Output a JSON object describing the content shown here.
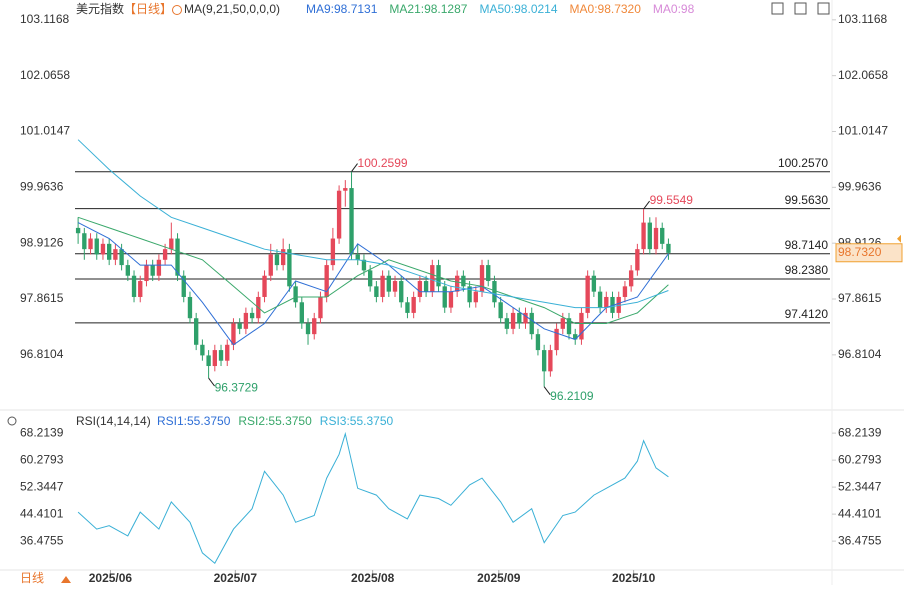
{
  "chart_data": {
    "type": "candlestick",
    "title": "美元指数",
    "period": "【日线】",
    "indicator": "MA(9,21,50,0,0,0)",
    "xlim": [
      -0.5,
      121
    ],
    "ylim": [
      95.81,
      103.49
    ],
    "yticks": [
      103.1168,
      102.0658,
      101.0147,
      99.9636,
      98.9126,
      97.8615,
      96.8104
    ],
    "xticks": [
      {
        "value": 5.2,
        "label": "2025/06"
      },
      {
        "value": 25.3,
        "label": "2025/07"
      },
      {
        "value": 47.4,
        "label": "2025/08"
      },
      {
        "value": 67.7,
        "label": "2025/09"
      },
      {
        "value": 89.4,
        "label": "2025/10"
      }
    ],
    "up_color": "#e5485a",
    "down_color": "#2ea06a",
    "candles": {
      "open": [
        99.2,
        99.1,
        98.8,
        99.0,
        98.7,
        98.9,
        98.6,
        98.8,
        98.5,
        98.3,
        97.9,
        98.2,
        98.5,
        98.3,
        98.6,
        98.8,
        99.0,
        98.3,
        97.9,
        97.5,
        97.0,
        96.8,
        96.6,
        96.9,
        96.7,
        97.0,
        97.4,
        97.3,
        97.6,
        97.5,
        97.9,
        98.3,
        98.7,
        98.5,
        98.8,
        98.1,
        97.8,
        97.4,
        97.2,
        97.5,
        97.9,
        98.5,
        99.0,
        99.9,
        99.95,
        98.7,
        98.6,
        98.4,
        98.1,
        97.9,
        98.3,
        98.0,
        98.2,
        97.8,
        97.6,
        97.9,
        98.2,
        98.0,
        98.5,
        98.1,
        97.7,
        98.0,
        98.3,
        98.1,
        97.8,
        98.0,
        98.5,
        98.2,
        97.8,
        97.5,
        97.3,
        97.6,
        97.4,
        97.6,
        97.2,
        96.9,
        96.5,
        96.9,
        97.3,
        97.5,
        97.2,
        97.1,
        97.6,
        98.3,
        98.0,
        97.7,
        97.9,
        97.6,
        97.9,
        98.1,
        98.4,
        98.8,
        99.3,
        98.8,
        99.2,
        98.9
      ],
      "high": [
        99.4,
        99.2,
        99.1,
        99.1,
        99.0,
        99.0,
        98.9,
        98.9,
        98.6,
        98.4,
        98.3,
        98.6,
        98.6,
        98.7,
        98.9,
        99.3,
        99.1,
        98.4,
        98.0,
        97.6,
        97.1,
        96.9,
        97.0,
        97.0,
        97.1,
        97.5,
        97.5,
        97.7,
        97.7,
        98.0,
        98.4,
        98.9,
        98.8,
        99.0,
        98.9,
        98.2,
        97.9,
        97.5,
        97.6,
        98.0,
        98.6,
        99.2,
        100.0,
        100.1,
        100.2599,
        98.9,
        98.7,
        98.5,
        98.2,
        98.4,
        98.4,
        98.3,
        98.3,
        97.9,
        98.0,
        98.3,
        98.3,
        98.6,
        98.6,
        98.2,
        98.1,
        98.4,
        98.4,
        98.2,
        98.1,
        98.6,
        98.6,
        98.3,
        97.9,
        97.6,
        97.7,
        97.7,
        97.7,
        97.7,
        97.3,
        97.0,
        97.0,
        97.4,
        97.6,
        97.6,
        97.3,
        97.7,
        98.4,
        98.4,
        98.1,
        98.0,
        98.0,
        98.0,
        98.2,
        98.5,
        98.9,
        99.5549,
        99.4,
        99.4,
        99.3,
        99.0
      ],
      "low": [
        98.9,
        98.6,
        98.7,
        98.6,
        98.6,
        98.5,
        98.5,
        98.4,
        98.2,
        97.8,
        97.8,
        98.1,
        98.2,
        98.2,
        98.5,
        98.7,
        98.2,
        97.8,
        97.4,
        96.9,
        96.7,
        96.3729,
        96.5,
        96.6,
        96.6,
        96.9,
        97.2,
        97.2,
        97.4,
        97.4,
        97.8,
        98.2,
        98.4,
        98.4,
        98.0,
        97.7,
        97.3,
        97.0,
        97.1,
        97.4,
        97.8,
        98.4,
        98.9,
        99.6,
        98.6,
        98.5,
        98.3,
        98.0,
        97.8,
        97.8,
        97.9,
        97.9,
        97.7,
        97.5,
        97.5,
        97.8,
        97.9,
        97.9,
        98.0,
        97.6,
        97.6,
        97.9,
        98.0,
        97.7,
        97.7,
        97.9,
        98.1,
        97.7,
        97.4,
        97.2,
        97.2,
        97.3,
        97.3,
        97.1,
        96.8,
        96.2109,
        96.4,
        96.8,
        97.2,
        97.1,
        97.0,
        97.0,
        97.5,
        97.9,
        97.6,
        97.6,
        97.5,
        97.5,
        97.8,
        98.0,
        98.3,
        98.7,
        98.7,
        98.7,
        98.8,
        98.6
      ],
      "close": [
        99.1,
        98.8,
        99.0,
        98.7,
        98.9,
        98.6,
        98.8,
        98.5,
        98.3,
        97.9,
        98.2,
        98.5,
        98.3,
        98.6,
        98.8,
        99.0,
        98.3,
        97.9,
        97.5,
        97.0,
        96.8,
        96.6,
        96.9,
        96.7,
        97.0,
        97.4,
        97.3,
        97.6,
        97.5,
        97.9,
        98.3,
        98.7,
        98.5,
        98.8,
        98.1,
        97.8,
        97.4,
        97.2,
        97.5,
        97.9,
        98.5,
        99.0,
        99.9,
        99.95,
        98.7,
        98.6,
        98.4,
        98.1,
        97.9,
        98.3,
        98.0,
        98.2,
        97.8,
        97.6,
        97.9,
        98.2,
        98.0,
        98.5,
        98.1,
        97.7,
        98.0,
        98.3,
        98.1,
        97.8,
        98.0,
        98.5,
        98.2,
        97.8,
        97.5,
        97.3,
        97.6,
        97.4,
        97.6,
        97.2,
        96.9,
        96.5,
        96.9,
        97.3,
        97.5,
        97.2,
        97.1,
        97.6,
        98.3,
        98.0,
        97.7,
        97.9,
        97.6,
        97.9,
        98.1,
        98.4,
        98.8,
        99.3,
        98.8,
        99.2,
        98.9,
        98.73
      ]
    },
    "series": [
      {
        "name": "MA9:98.7131",
        "color": "#2f6fd6",
        "x": [
          0,
          5,
          10,
          15,
          20,
          25,
          30,
          35,
          40,
          45,
          50,
          55,
          60,
          65,
          70,
          75,
          80,
          85,
          90,
          95
        ],
        "values": [
          99.3,
          99.0,
          98.5,
          98.5,
          97.8,
          97.0,
          97.4,
          98.2,
          98.0,
          98.9,
          98.5,
          98.0,
          98.0,
          98.1,
          97.7,
          97.3,
          97.1,
          97.7,
          97.9,
          98.7131
        ]
      },
      {
        "name": "MA21:98.1287",
        "color": "#3aa86b",
        "x": [
          0,
          5,
          10,
          15,
          20,
          25,
          30,
          35,
          40,
          45,
          50,
          55,
          60,
          65,
          70,
          75,
          80,
          85,
          90,
          95
        ],
        "values": [
          99.4,
          99.2,
          99.0,
          98.8,
          98.6,
          98.1,
          97.6,
          97.9,
          97.9,
          98.3,
          98.6,
          98.4,
          98.2,
          98.1,
          97.9,
          97.7,
          97.4,
          97.4,
          97.6,
          98.1287
        ]
      },
      {
        "name": "MA50:98.0214",
        "color": "#3ab0d6",
        "x": [
          0,
          5,
          10,
          15,
          20,
          25,
          30,
          35,
          40,
          45,
          50,
          55,
          60,
          65,
          70,
          75,
          80,
          85,
          90,
          95
        ],
        "values": [
          100.86,
          100.3,
          99.8,
          99.4,
          99.2,
          99.0,
          98.8,
          98.7,
          98.6,
          98.6,
          98.5,
          98.3,
          98.1,
          98.0,
          97.9,
          97.8,
          97.7,
          97.7,
          97.8,
          98.0214
        ]
      }
    ],
    "extra_legend": [
      {
        "name": "MA0:98.7320",
        "color": "#f0883a"
      },
      {
        "name": "MA0:98",
        "color": "#d78ad8"
      }
    ],
    "levels": [
      {
        "value": 100.257,
        "label": "100.2570"
      },
      {
        "value": 99.563,
        "label": "99.5630"
      },
      {
        "value": 98.714,
        "label": "98.7140"
      },
      {
        "value": 98.238,
        "label": "98.2380"
      },
      {
        "value": 97.412,
        "label": "97.4120"
      }
    ],
    "annotations": [
      {
        "value": 100.2599,
        "index": 44,
        "color": "#e5485a"
      },
      {
        "value": 99.5549,
        "index": 91,
        "color": "#e5485a"
      },
      {
        "value": 96.3729,
        "index": 21,
        "color": "#2ea06a"
      },
      {
        "value": 96.2109,
        "index": 75,
        "color": "#2ea06a"
      }
    ],
    "price_tag": {
      "value": 98.732,
      "label": "98.7320"
    },
    "rsi": {
      "title": "RSI(14,14,14)",
      "ylim": [
        27.4,
        70.6
      ],
      "yticks": [
        68.2139,
        60.2793,
        52.3447,
        44.4101,
        36.4755
      ],
      "legend": [
        {
          "name": "RSI1:55.3750",
          "color": "#2f6fd6"
        },
        {
          "name": "RSI2:55.3750",
          "color": "#3aa86b"
        },
        {
          "name": "RSI3:55.3750",
          "color": "#3ab0d6"
        }
      ],
      "x": [
        0,
        3,
        5,
        8,
        10,
        13,
        15,
        18,
        20,
        22,
        25,
        28,
        30,
        33,
        35,
        38,
        40,
        42,
        43,
        45,
        48,
        50,
        53,
        55,
        58,
        60,
        63,
        65,
        68,
        70,
        73,
        75,
        78,
        80,
        83,
        85,
        88,
        90,
        91,
        93,
        95
      ],
      "values": [
        45,
        40,
        41,
        38,
        45,
        40,
        48,
        42,
        33,
        30,
        40,
        46,
        57,
        50,
        42,
        44,
        55,
        62,
        68,
        52,
        50,
        46,
        43,
        50,
        49,
        47,
        53,
        55,
        48,
        42,
        46,
        36,
        44,
        45,
        50,
        52,
        55,
        60,
        66,
        58,
        55.375
      ]
    },
    "period_button": "日线"
  }
}
